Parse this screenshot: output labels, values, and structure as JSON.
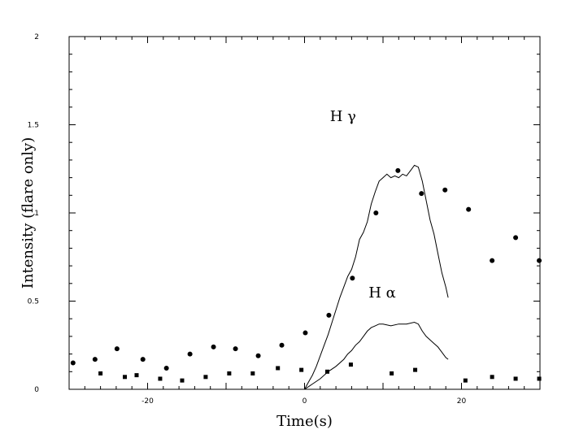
{
  "chart_data": {
    "type": "scatter",
    "xlabel": "Time(s)",
    "ylabel": "Intensity (flare only)",
    "xlim": [
      -30,
      30
    ],
    "ylim": [
      0,
      2
    ],
    "x_ticks": [
      -20,
      0,
      20
    ],
    "x_tick_labels": [
      "-20",
      "0",
      "20"
    ],
    "y_ticks": [
      0,
      0.5,
      1,
      1.5,
      2
    ],
    "y_tick_labels": [
      "0",
      "0.5",
      "1",
      "1.5",
      "2"
    ],
    "grid": false,
    "annotations": [
      {
        "text": "H γ",
        "x": 4.9,
        "y": 1.52
      },
      {
        "text": "H α",
        "x": 9.9,
        "y": 0.52
      }
    ],
    "series": [
      {
        "marker": "circle",
        "points": [
          [
            -29.5,
            0.15
          ],
          [
            -26.7,
            0.17
          ],
          [
            -23.9,
            0.23
          ],
          [
            -20.6,
            0.17
          ],
          [
            -17.6,
            0.12
          ],
          [
            -14.6,
            0.2
          ],
          [
            -11.6,
            0.24
          ],
          [
            -8.8,
            0.23
          ],
          [
            -5.9,
            0.19
          ],
          [
            -2.9,
            0.25
          ],
          [
            0.1,
            0.32
          ],
          [
            3.1,
            0.42
          ],
          [
            6.1,
            0.63
          ],
          [
            9.1,
            1.0
          ],
          [
            11.9,
            1.24
          ],
          [
            14.9,
            1.11
          ],
          [
            17.9,
            1.13
          ],
          [
            20.9,
            1.02
          ],
          [
            23.9,
            0.73
          ],
          [
            26.9,
            0.86
          ],
          [
            29.9,
            0.73
          ]
        ]
      },
      {
        "marker": "square",
        "points": [
          [
            -26.0,
            0.09
          ],
          [
            -22.9,
            0.07
          ],
          [
            -21.4,
            0.08
          ],
          [
            -18.4,
            0.06
          ],
          [
            -15.6,
            0.05
          ],
          [
            -12.6,
            0.07
          ],
          [
            -9.6,
            0.09
          ],
          [
            -6.6,
            0.09
          ],
          [
            -3.4,
            0.12
          ],
          [
            -0.4,
            0.11
          ],
          [
            2.9,
            0.1
          ],
          [
            5.9,
            0.14
          ],
          [
            11.1,
            0.09
          ],
          [
            14.1,
            0.11
          ],
          [
            20.5,
            0.05
          ],
          [
            23.9,
            0.07
          ],
          [
            26.9,
            0.06
          ],
          [
            29.9,
            0.06
          ]
        ]
      },
      {
        "marker": "line",
        "points": [
          [
            0,
            0
          ],
          [
            0.5,
            0.04
          ],
          [
            1,
            0.08
          ],
          [
            1.5,
            0.13
          ],
          [
            2,
            0.19
          ],
          [
            2.5,
            0.25
          ],
          [
            3,
            0.31
          ],
          [
            3.5,
            0.38
          ],
          [
            4,
            0.45
          ],
          [
            4.5,
            0.52
          ],
          [
            5,
            0.58
          ],
          [
            5.5,
            0.64
          ],
          [
            6,
            0.68
          ],
          [
            6.5,
            0.75
          ],
          [
            7,
            0.85
          ],
          [
            7.5,
            0.89
          ],
          [
            8,
            0.95
          ],
          [
            8.5,
            1.05
          ],
          [
            9,
            1.12
          ],
          [
            9.5,
            1.18
          ],
          [
            10,
            1.2
          ],
          [
            10.5,
            1.22
          ],
          [
            11,
            1.2
          ],
          [
            11.5,
            1.21
          ],
          [
            12,
            1.2
          ],
          [
            12.5,
            1.22
          ],
          [
            13,
            1.21
          ],
          [
            13.5,
            1.24
          ],
          [
            14,
            1.27
          ],
          [
            14.5,
            1.26
          ],
          [
            15,
            1.18
          ],
          [
            15.5,
            1.07
          ],
          [
            16,
            0.96
          ],
          [
            16.5,
            0.88
          ],
          [
            17,
            0.77
          ],
          [
            17.5,
            0.66
          ],
          [
            18,
            0.58
          ],
          [
            18.3,
            0.52
          ]
        ]
      },
      {
        "marker": "line",
        "points": [
          [
            0,
            0
          ],
          [
            1,
            0.03
          ],
          [
            2,
            0.06
          ],
          [
            3,
            0.1
          ],
          [
            4,
            0.13
          ],
          [
            5,
            0.17
          ],
          [
            5.5,
            0.2
          ],
          [
            6,
            0.22
          ],
          [
            6.5,
            0.25
          ],
          [
            7,
            0.27
          ],
          [
            7.5,
            0.3
          ],
          [
            8,
            0.33
          ],
          [
            8.5,
            0.35
          ],
          [
            9,
            0.36
          ],
          [
            9.5,
            0.37
          ],
          [
            10,
            0.37
          ],
          [
            11,
            0.36
          ],
          [
            12,
            0.37
          ],
          [
            13,
            0.37
          ],
          [
            14,
            0.38
          ],
          [
            14.5,
            0.37
          ],
          [
            15,
            0.33
          ],
          [
            15.5,
            0.3
          ],
          [
            16,
            0.28
          ],
          [
            16.5,
            0.26
          ],
          [
            17,
            0.24
          ],
          [
            17.5,
            0.21
          ],
          [
            18,
            0.18
          ],
          [
            18.3,
            0.17
          ]
        ]
      }
    ]
  }
}
